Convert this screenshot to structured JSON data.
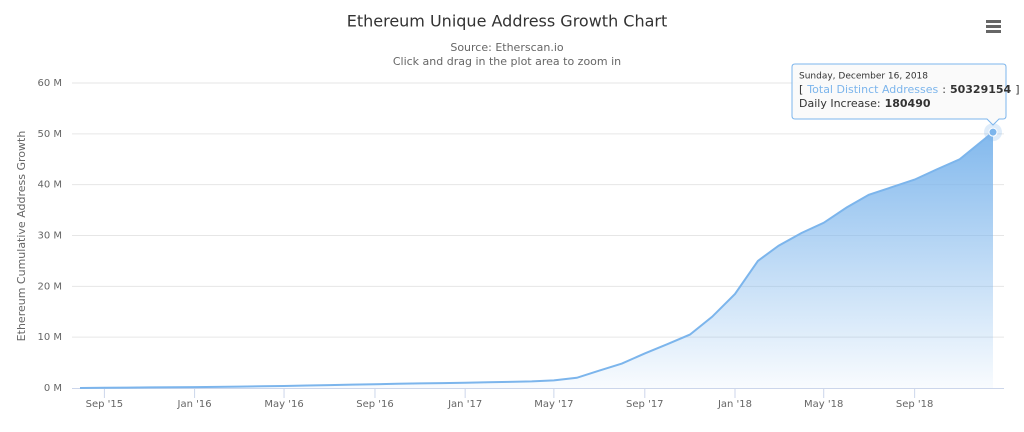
{
  "chart_data": {
    "type": "area",
    "title": "Ethereum Unique Address Growth Chart",
    "subtitle": [
      "Source: Etherscan.io",
      "Click and drag in the plot area to zoom in"
    ],
    "y_axis_label": "Ethereum Cumulative Address Growth",
    "x": [
      "2015-07-30",
      "2015-09",
      "2015-10",
      "2015-11",
      "2015-12",
      "2016-01",
      "2016-02",
      "2016-03",
      "2016-04",
      "2016-05",
      "2016-06",
      "2016-07",
      "2016-08",
      "2016-09",
      "2016-10",
      "2016-11",
      "2016-12",
      "2017-01",
      "2017-02",
      "2017-03",
      "2017-04",
      "2017-05",
      "2017-06",
      "2017-07",
      "2017-08",
      "2017-09",
      "2017-10",
      "2017-11",
      "2017-12",
      "2018-01",
      "2018-02",
      "2018-03",
      "2018-04",
      "2018-05",
      "2018-06",
      "2018-07",
      "2018-08",
      "2018-09",
      "2018-10",
      "2018-11",
      "2018-12-16"
    ],
    "series": [
      {
        "name": "Total Distinct Addresses",
        "color": "#7cb5ec",
        "values": [
          0,
          50000,
          80000,
          110000,
          140000,
          170000,
          210000,
          270000,
          330000,
          400000,
          500000,
          580000,
          660000,
          750000,
          820000,
          900000,
          970000,
          1050000,
          1120000,
          1200000,
          1300000,
          1500000,
          2000000,
          3400000,
          4800000,
          6800000,
          8600000,
          10500000,
          14000000,
          18500000,
          25000000,
          28000000,
          30500000,
          32500000,
          35500000,
          38000000,
          39500000,
          41000000,
          43000000,
          45000000,
          50329154
        ]
      }
    ],
    "xlim": [
      "2015-07-30",
      "2018-12-16"
    ],
    "xticks": [
      {
        "value": "2015-09",
        "label": "Sep '15"
      },
      {
        "value": "2016-01",
        "label": "Jan '16"
      },
      {
        "value": "2016-05",
        "label": "May '16"
      },
      {
        "value": "2016-09",
        "label": "Sep '16"
      },
      {
        "value": "2017-01",
        "label": "Jan '17"
      },
      {
        "value": "2017-05",
        "label": "May '17"
      },
      {
        "value": "2017-09",
        "label": "Sep '17"
      },
      {
        "value": "2018-01",
        "label": "Jan '18"
      },
      {
        "value": "2018-05",
        "label": "May '18"
      },
      {
        "value": "2018-09",
        "label": "Sep '18"
      }
    ],
    "ylim": [
      0,
      60000000
    ],
    "yticks": [
      {
        "value": 0,
        "label": "0 M"
      },
      {
        "value": 10000000,
        "label": "10 M"
      },
      {
        "value": 20000000,
        "label": "20 M"
      },
      {
        "value": 30000000,
        "label": "30 M"
      },
      {
        "value": 40000000,
        "label": "40 M"
      },
      {
        "value": 50000000,
        "label": "50 M"
      },
      {
        "value": 60000000,
        "label": "60 M"
      }
    ],
    "grid": true,
    "tooltip": {
      "date": "Sunday, December 16, 2018",
      "prefix": "[",
      "separator": ":",
      "value": 50329154,
      "suffix": "]",
      "daily_label": "Daily Increase:",
      "daily_value": 180490
    }
  }
}
